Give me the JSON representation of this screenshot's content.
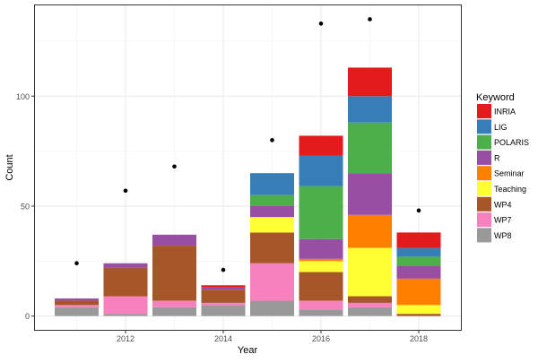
{
  "chart_data": {
    "type": "bar",
    "stacked": true,
    "title": "",
    "xlabel": "Year",
    "ylabel": "Count",
    "ylim": [
      0,
      140
    ],
    "xlim": [
      2010.4,
      2019.1
    ],
    "xticks": [
      "2012",
      "2014",
      "2016",
      "2018"
    ],
    "yticks": [
      "0",
      "50",
      "100"
    ],
    "grid": true,
    "legend": {
      "title": "Keyword",
      "position": "right"
    },
    "categories": [
      2011,
      2012,
      2013,
      2014,
      2015,
      2016,
      2017,
      2018
    ],
    "series": [
      {
        "name": "WP8",
        "color": "#999999",
        "values": [
          4,
          1,
          4,
          5,
          7,
          3,
          4,
          0
        ]
      },
      {
        "name": "WP7",
        "color": "#F781BF",
        "values": [
          1,
          8,
          3,
          1,
          17,
          4,
          2,
          0
        ]
      },
      {
        "name": "WP4",
        "color": "#A65628",
        "values": [
          2,
          13,
          25,
          6,
          14,
          13,
          3,
          1
        ]
      },
      {
        "name": "Teaching",
        "color": "#FFFF33",
        "values": [
          0,
          0,
          0,
          0,
          7,
          5,
          22,
          4
        ]
      },
      {
        "name": "Seminar",
        "color": "#FF7F00",
        "values": [
          0,
          0,
          0,
          0,
          0,
          1,
          15,
          12
        ]
      },
      {
        "name": "R",
        "color": "#984EA3",
        "values": [
          1,
          2,
          5,
          1,
          5,
          9,
          19,
          6
        ]
      },
      {
        "name": "POLARIS",
        "color": "#4DAF4A",
        "values": [
          0,
          0,
          0,
          0,
          5,
          24,
          23,
          4
        ]
      },
      {
        "name": "LIG",
        "color": "#377EB8",
        "values": [
          0,
          0,
          0,
          0,
          10,
          14,
          12,
          4
        ]
      },
      {
        "name": "INRIA",
        "color": "#E41A1C",
        "values": [
          0,
          0,
          0,
          1,
          0,
          9,
          13,
          7
        ]
      }
    ],
    "points": {
      "color": "#000000",
      "values": [
        24,
        57,
        68,
        21,
        80,
        133,
        135,
        48
      ]
    },
    "legend_order": [
      "INRIA",
      "LIG",
      "POLARIS",
      "R",
      "Seminar",
      "Teaching",
      "WP4",
      "WP7",
      "WP8"
    ]
  }
}
